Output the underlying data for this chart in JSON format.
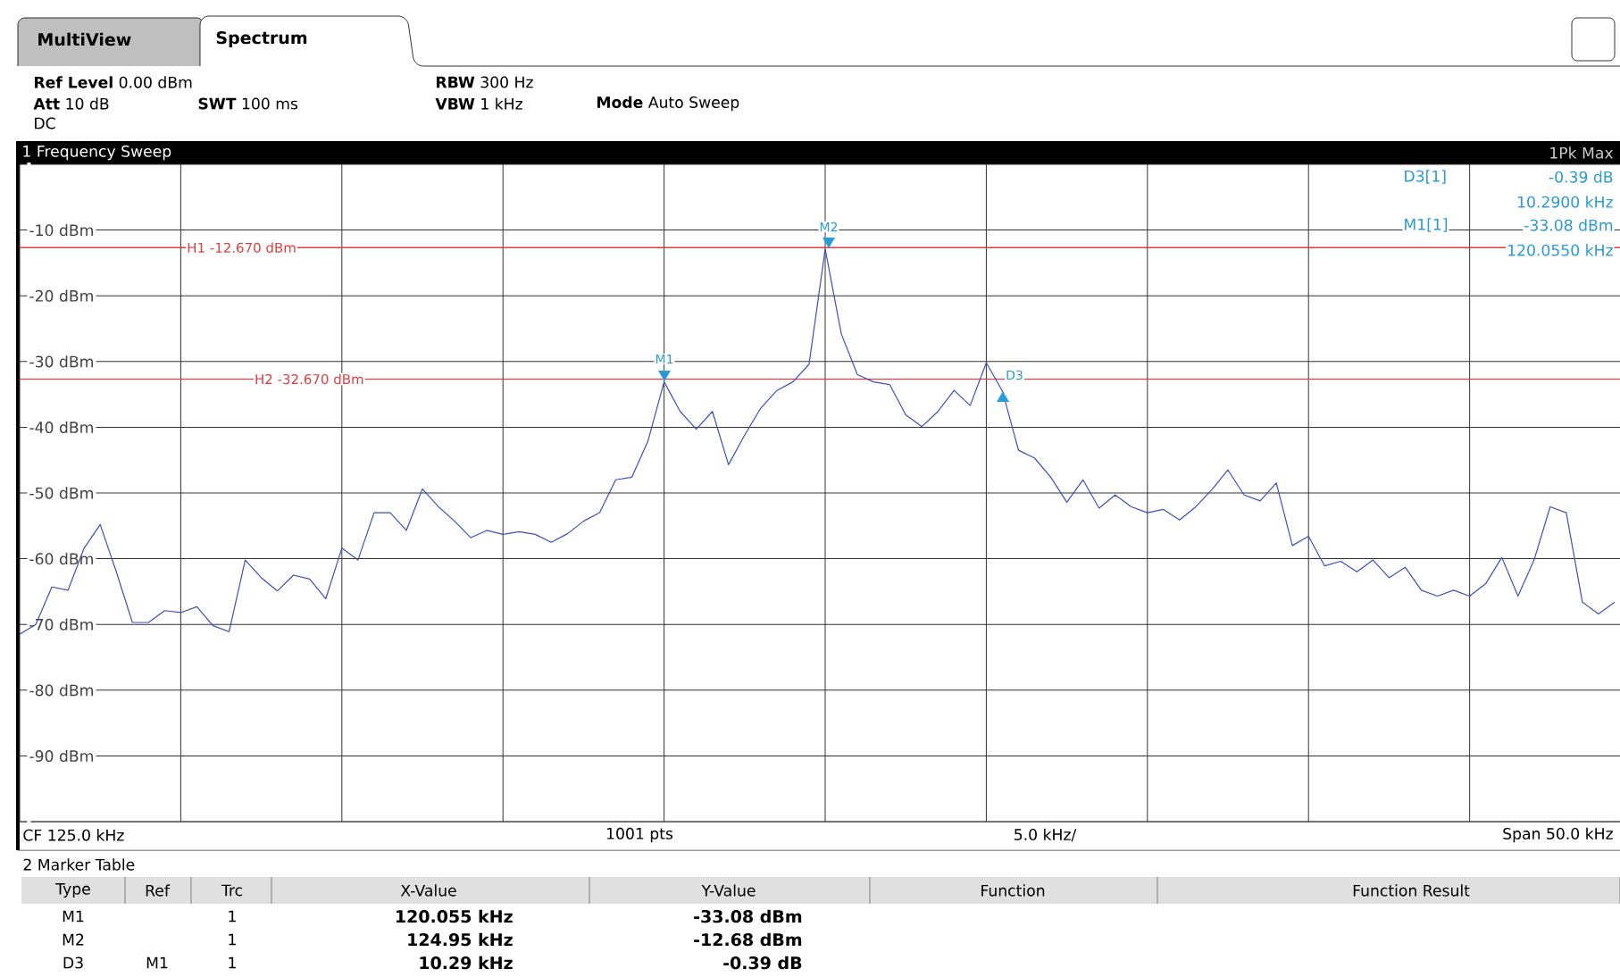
{
  "chart_data": {
    "type": "line",
    "title": "1 Frequency Sweep",
    "categories": [
      null,
      null,
      null,
      null,
      null,
      null,
      null,
      null,
      null,
      null,
      null,
      null,
      null,
      null,
      null,
      null,
      null,
      null,
      null,
      null,
      null,
      null,
      null,
      null,
      null,
      null,
      null,
      null,
      null,
      null,
      null,
      null,
      null,
      null,
      null,
      null,
      null,
      null,
      null,
      null,
      null,
      null,
      null,
      null,
      null,
      null,
      null,
      null,
      null,
      null,
      null,
      null,
      null,
      null,
      null,
      null,
      null,
      null,
      null,
      null,
      null,
      null,
      null,
      null,
      null,
      null,
      null,
      null,
      null,
      null,
      null,
      null,
      null,
      null,
      null,
      null,
      null,
      null,
      null,
      null,
      null,
      null,
      null,
      null,
      null,
      null,
      null,
      null,
      null,
      null,
      null,
      null,
      null,
      null,
      null,
      null,
      null,
      null,
      null,
      null,
      null
    ],
    "values": [
      -71.5,
      -70.0,
      -64.3,
      -64.8,
      -58.4,
      -54.8,
      -62.0,
      -69.7,
      -69.7,
      -67.9,
      -68.2,
      -67.3,
      -70.2,
      -71.1,
      -60.2,
      -62.9,
      -64.9,
      -62.5,
      -63.1,
      -66.1,
      -58.4,
      -60.2,
      -53.0,
      -53.0,
      -55.7,
      -49.4,
      -52.1,
      -54.3,
      -56.8,
      -55.7,
      -56.3,
      -55.9,
      -56.3,
      -57.5,
      -56.2,
      -54.3,
      -53.0,
      -48.0,
      -47.6,
      -42.1,
      -33.1,
      -37.6,
      -40.3,
      -37.6,
      -45.7,
      -41.2,
      -37.1,
      -34.4,
      -33.1,
      -30.4,
      -12.9,
      -25.8,
      -32.0,
      -33.1,
      -33.5,
      -38.1,
      -39.9,
      -37.6,
      -34.4,
      -36.7,
      -30.2,
      -34.5,
      -43.5,
      -44.7,
      -47.6,
      -51.4,
      -48.0,
      -52.3,
      -50.3,
      -52.1,
      -53.0,
      -52.5,
      -54.1,
      -52.1,
      -49.5,
      -46.5,
      -50.3,
      -51.2,
      -48.5,
      -58.0,
      -56.6,
      -61.1,
      -60.4,
      -62.0,
      -60.2,
      -62.9,
      -61.3,
      -64.8,
      -65.7,
      -64.8,
      -65.7,
      -63.8,
      -59.8,
      -65.7,
      -60.2,
      -52.1,
      -53.0,
      -66.6,
      -68.4,
      -66.6,
      null
    ],
    "color": "#3f4fb5",
    "line_style": "solid",
    "marker": "none",
    "grid": true,
    "tick_labels": "y",
    "ylim": [
      -100,
      0
    ],
    "yticks": [
      {
        "value": -100,
        "label": null
      },
      {
        "value": -90,
        "label": "-90 dBm"
      },
      {
        "value": -80,
        "label": "-80 dBm"
      },
      {
        "value": -70,
        "label": "-70 dBm"
      },
      {
        "value": -60,
        "label": "-60 dBm"
      },
      {
        "value": -50,
        "label": "-50 dBm"
      },
      {
        "value": -40,
        "label": "-40 dBm"
      },
      {
        "value": -30,
        "label": "-30 dBm"
      },
      {
        "value": -20,
        "label": "-20 dBm"
      },
      {
        "value": -10,
        "label": "-10 dBm"
      },
      {
        "value": 0,
        "label": null
      }
    ],
    "ref_lines": [
      {
        "axis": "y",
        "value": -12.67,
        "label": "H1 -12.670 dBm",
        "color": "#d84040"
      },
      {
        "axis": "y",
        "value": -32.67,
        "label": "H2 -32.670 dBm",
        "color": "#d84040"
      }
    ],
    "annotations": [
      "MultiView",
      "Spectrum",
      "**Ref Level** 0.00 dBm",
      "**Att** 10 dB",
      "**SWT** 100 ms",
      "**RBW** 300 Hz",
      "**VBW** 1 kHz",
      "**Mode** Auto Sweep",
      "DC",
      "1Pk Max",
      "D3[1]",
      "-0.39 dB",
      "10.2900 kHz",
      "M1[1]",
      "-33.08 dBm",
      "120.0550 kHz",
      "CF 125.0 kHz",
      "1001 pts",
      "5.0 kHz/",
      "Span 50.0 kHz",
      "2 Marker Table",
      "Type",
      "Ref",
      "Trc",
      "X-Value",
      "Y-Value",
      "Function",
      "Function Result",
      "M1",
      "1",
      "120.055 kHz",
      "-33.08 dBm",
      "M2",
      "1",
      "124.95 kHz",
      "-12.68 dBm",
      "D3",
      "M1",
      "1",
      "10.29 kHz",
      "-0.39 dB",
      "M1",
      "M2",
      "D3"
    ]
  }
}
